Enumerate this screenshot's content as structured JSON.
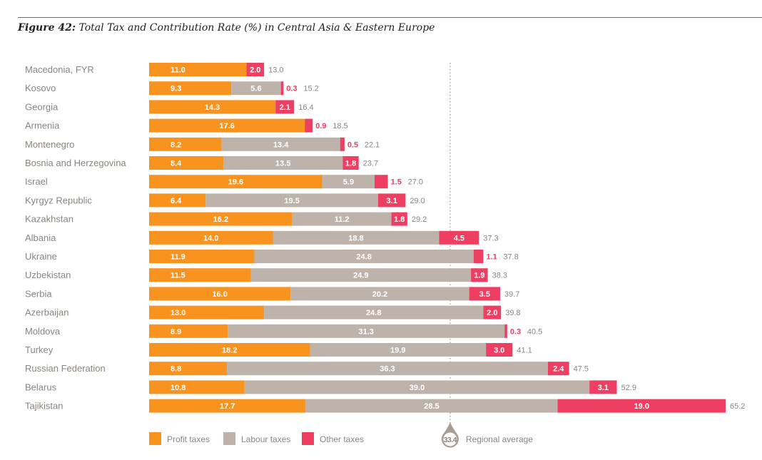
{
  "figure": {
    "number_label": "Figure 42:",
    "title_text": "Total Tax and Contribution Rate (%) in Central Asia & Eastern Europe"
  },
  "chart_data": {
    "type": "bar",
    "orientation": "horizontal",
    "stacked": true,
    "title": "Figure 42: Total Tax and Contribution Rate (%) in Central Asia & Eastern Europe",
    "xlabel": "",
    "ylabel": "",
    "xlim": [
      0,
      65.2
    ],
    "grid": false,
    "legend_position": "bottom",
    "categories": [
      "Macedonia, FYR",
      "Kosovo",
      "Georgia",
      "Armenia",
      "Montenegro",
      "Bosnia and Herzegovina",
      "Israel",
      "Kyrgyz Republic",
      "Kazakhstan",
      "Albania",
      "Ukraine",
      "Uzbekistan",
      "Serbia",
      "Azerbaijan",
      "Moldova",
      "Turkey",
      "Russian Federation",
      "Belarus",
      "Tajikistan"
    ],
    "series": [
      {
        "name": "Profit taxes",
        "color": "#f7931e",
        "values": [
          11.0,
          9.3,
          14.3,
          17.6,
          8.2,
          8.4,
          19.6,
          6.4,
          16.2,
          14.0,
          11.9,
          11.5,
          16.0,
          13.0,
          8.9,
          18.2,
          8.8,
          10.8,
          17.7
        ]
      },
      {
        "name": "Labour taxes",
        "color": "#bdb3aa",
        "values": [
          0,
          5.6,
          0,
          0,
          13.4,
          13.5,
          5.9,
          19.5,
          11.2,
          18.8,
          24.8,
          24.9,
          20.2,
          24.8,
          31.3,
          19.9,
          36.3,
          39.0,
          28.5
        ]
      },
      {
        "name": "Other taxes",
        "color": "#ee3f63",
        "values": [
          2.0,
          0.3,
          2.1,
          0.9,
          0.5,
          1.8,
          1.5,
          3.1,
          1.8,
          4.5,
          1.1,
          1.9,
          3.5,
          2.0,
          0.3,
          3.0,
          2.4,
          3.1,
          19.0
        ]
      }
    ],
    "totals": [
      13.0,
      15.2,
      16.4,
      18.5,
      22.1,
      23.7,
      27.0,
      29.0,
      29.2,
      37.3,
      37.8,
      38.3,
      39.7,
      39.8,
      40.5,
      41.1,
      47.5,
      52.9,
      65.2
    ],
    "reference_line": {
      "label": "Regional average",
      "value": 33.4,
      "value_label": "33.4",
      "style": "dotted",
      "color": "#bdb3aa"
    },
    "legend": [
      {
        "label": "Profit taxes",
        "color": "#f7931e"
      },
      {
        "label": "Labour taxes",
        "color": "#bdb3aa"
      },
      {
        "label": "Other taxes",
        "color": "#ee3f63"
      }
    ]
  }
}
